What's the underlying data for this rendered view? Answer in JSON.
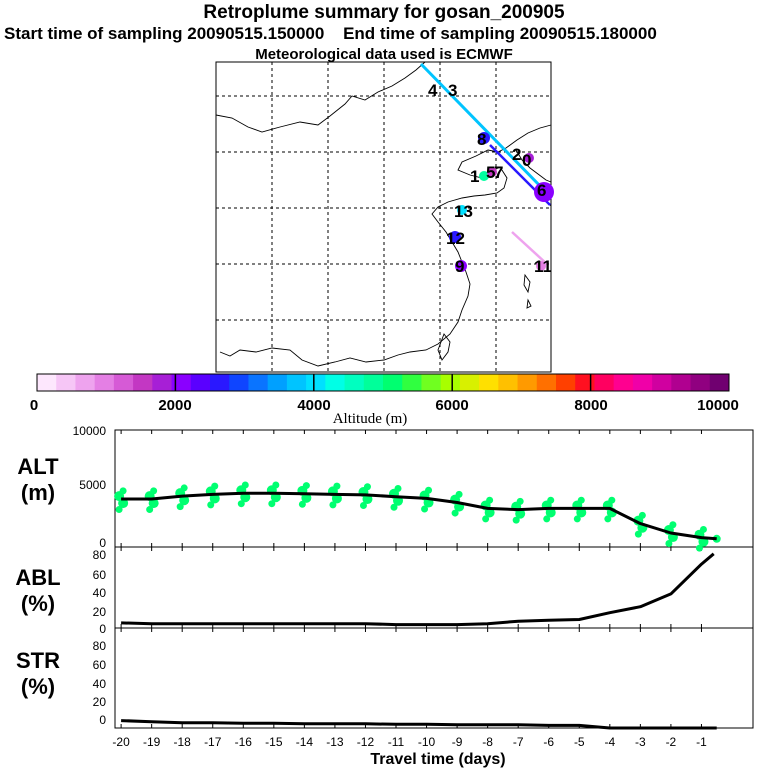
{
  "header": {
    "title": "Retroplume summary for gosan_200905",
    "start": "Start time of sampling 20090515.150000",
    "end": "End time of sampling 20090515.180000",
    "met": "Meteorological data used is ECMWF"
  },
  "colorbar": {
    "title": "Altitude (m)",
    "ticks": [
      "0",
      "2000",
      "4000",
      "6000",
      "8000",
      "10000"
    ],
    "colors": [
      "#fde7fd",
      "#f6c6f6",
      "#eea3ee",
      "#e47fe4",
      "#d65ad6",
      "#c337c3",
      "#a71fd6",
      "#8a00ff",
      "#5a00ff",
      "#2a18ff",
      "#0f45ff",
      "#0a74ff",
      "#00a0ff",
      "#00c4ff",
      "#00e0ff",
      "#00ffe6",
      "#00ffc0",
      "#00ff9a",
      "#00ff70",
      "#30ff40",
      "#70ff20",
      "#a8ff00",
      "#d8f000",
      "#ffe000",
      "#ffc000",
      "#ff9a00",
      "#ff7000",
      "#ff4000",
      "#ff1020",
      "#ff0060",
      "#ff0090",
      "#f000a8",
      "#d000a0",
      "#b00090",
      "#900080",
      "#700070"
    ]
  },
  "map": {
    "labels": [
      {
        "text": "4",
        "color": "#1e90ff"
      },
      {
        "text": "3",
        "color": "#1e90ff"
      },
      {
        "text": "8",
        "color": "#2a18ff"
      },
      {
        "text": "2",
        "color": "#8a00ff"
      },
      {
        "text": "0",
        "color": "#8a00ff"
      },
      {
        "text": "1",
        "color": "#00ffa0"
      },
      {
        "text": "5",
        "color": "#c337c3"
      },
      {
        "text": "7",
        "color": "#c337c3"
      },
      {
        "text": "13",
        "color": "#00e0ff"
      },
      {
        "text": "12",
        "color": "#2a18ff"
      },
      {
        "text": "9",
        "color": "#8a00ff"
      },
      {
        "text": "11",
        "color": "#e47fe4"
      },
      {
        "text": "6",
        "color": "#8a00ff"
      }
    ]
  },
  "panels": {
    "alt": {
      "label1": "ALT",
      "label2": "(m)",
      "ticks": [
        "10000",
        "5000",
        "0"
      ]
    },
    "abl": {
      "label1": "ABL",
      "label2": "(%)",
      "ticks": [
        "80",
        "60",
        "40",
        "20",
        "0"
      ]
    },
    "str": {
      "label1": "STR",
      "label2": "(%)",
      "ticks": [
        "80",
        "60",
        "40",
        "20",
        "0"
      ]
    }
  },
  "chart_data": [
    {
      "type": "line",
      "title": "ALT (m)",
      "xlabel": "Travel time (days)",
      "ylabel": "Altitude (m)",
      "ylim": [
        0,
        10000
      ],
      "xlim": [
        -20,
        -0.5
      ],
      "x": [
        -20,
        -19,
        -18,
        -17,
        -16,
        -15,
        -14,
        -13,
        -12,
        -11,
        -10,
        -9,
        -8,
        -7,
        -6,
        -5,
        -4,
        -3,
        -2,
        -1,
        -0.5
      ],
      "values": [
        4100,
        4100,
        4350,
        4500,
        4600,
        4600,
        4550,
        4500,
        4450,
        4300,
        4150,
        3800,
        3300,
        3200,
        3300,
        3300,
        3300,
        2000,
        1200,
        800,
        700
      ]
    },
    {
      "type": "line",
      "title": "ABL (%)",
      "xlabel": "Travel time (days)",
      "ylabel": "ABL (%)",
      "ylim": [
        0,
        95
      ],
      "xlim": [
        -20,
        -0.5
      ],
      "x": [
        -20,
        -19,
        -18,
        -17,
        -16,
        -15,
        -14,
        -13,
        -12,
        -11,
        -10,
        -9,
        -8,
        -7,
        -6,
        -5,
        -4,
        -3,
        -2,
        -1,
        -0.6
      ],
      "values": [
        6,
        5,
        5,
        5,
        5,
        5,
        5,
        5,
        5,
        4,
        4,
        4,
        5,
        8,
        9,
        10,
        18,
        25,
        40,
        75,
        87
      ]
    },
    {
      "type": "line",
      "title": "STR (%)",
      "xlabel": "Travel time (days)",
      "ylabel": "STR (%)",
      "ylim": [
        0,
        95
      ],
      "xlim": [
        -20,
        -0.5
      ],
      "x": [
        -20,
        -19,
        -18,
        -17,
        -16,
        -15,
        -14,
        -13,
        -12,
        -11,
        -10,
        -9,
        -8,
        -7,
        -6,
        -5,
        -4,
        -3,
        -2,
        -1,
        -0.5
      ],
      "values": [
        7,
        6,
        5,
        5,
        4.5,
        4.5,
        4,
        4,
        4,
        3.5,
        3.5,
        3,
        3,
        3,
        2.5,
        2.5,
        0,
        0,
        0,
        0,
        0
      ]
    }
  ],
  "xaxis": {
    "ticks": [
      "-20",
      "-19",
      "-18",
      "-17",
      "-16",
      "-15",
      "-14",
      "-13",
      "-12",
      "-11",
      "-10",
      "-9",
      "-8",
      "-7",
      "-6",
      "-5",
      "-4",
      "-3",
      "-2",
      "-1"
    ],
    "title": "Travel time (days)"
  }
}
